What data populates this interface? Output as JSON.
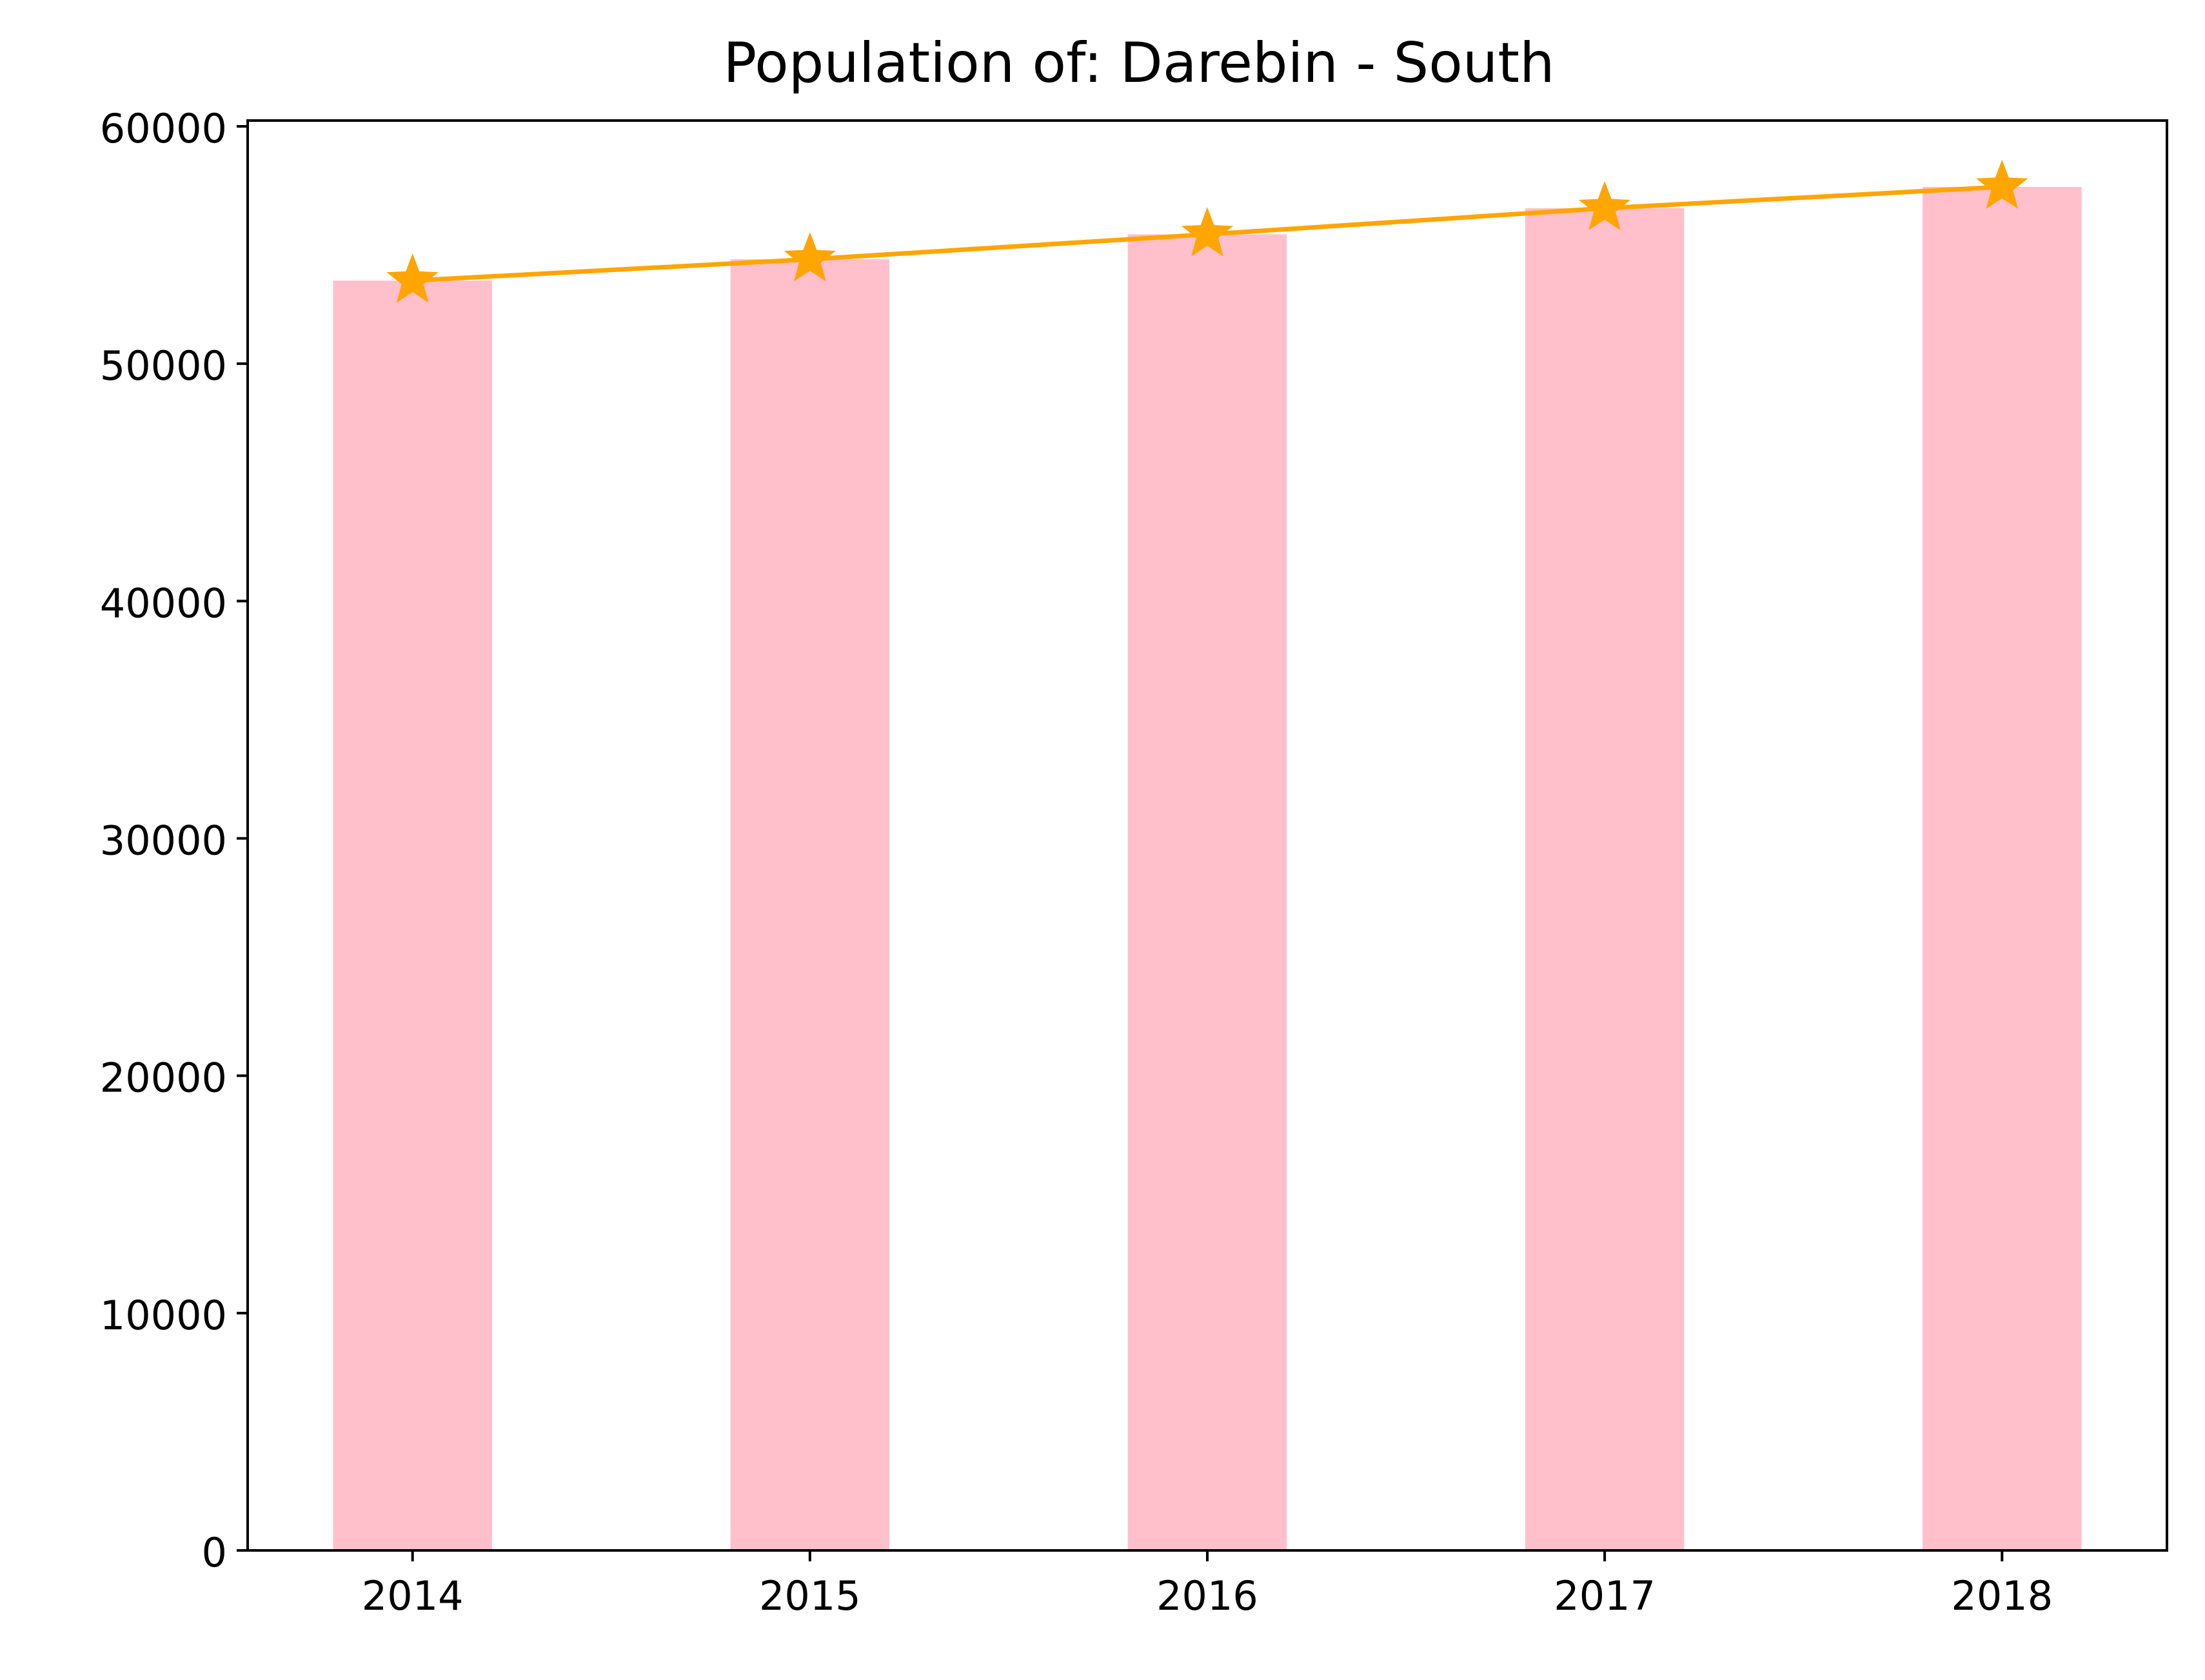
{
  "chart_data": {
    "type": "bar",
    "title": "Population of: Darebin - South",
    "xlabel": "",
    "ylabel": "",
    "categories": [
      "2014",
      "2015",
      "2016",
      "2017",
      "2018"
    ],
    "series": [
      {
        "type": "bar",
        "values": [
          53500,
          54400,
          55450,
          56550,
          57450
        ],
        "color": "#ffc0cb"
      },
      {
        "type": "line",
        "marker": "star",
        "values": [
          53500,
          54400,
          55450,
          56550,
          57450
        ],
        "color": "#ffa500"
      }
    ],
    "ylim": [
      0,
      60000
    ],
    "yticks": [
      "0",
      "10000",
      "20000",
      "30000",
      "40000",
      "50000",
      "60000"
    ],
    "grid": false,
    "legend": "none"
  }
}
